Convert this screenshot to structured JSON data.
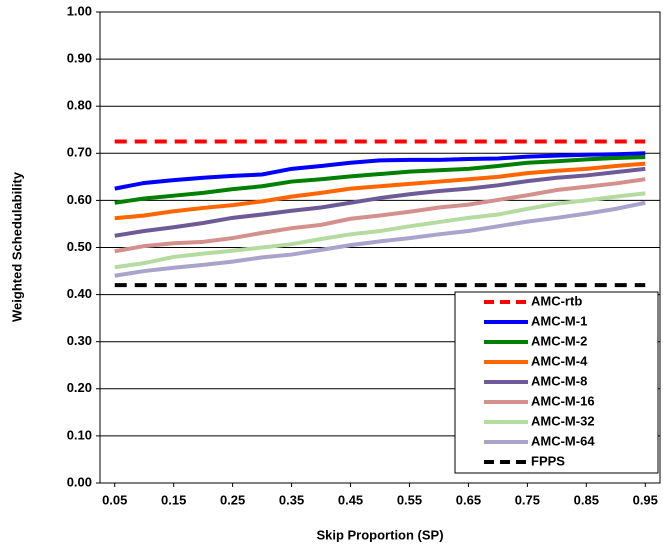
{
  "chart_data": {
    "type": "line",
    "x_label": "Skip Proportion (SP)",
    "y_label": "Weighted Schedulability",
    "x": [
      0.05,
      0.1,
      0.15,
      0.2,
      0.25,
      0.3,
      0.35,
      0.4,
      0.45,
      0.5,
      0.55,
      0.6,
      0.65,
      0.7,
      0.75,
      0.8,
      0.85,
      0.9,
      0.95
    ],
    "xlim": [
      0.025,
      0.975
    ],
    "xticks": [
      0.05,
      0.15,
      0.25,
      0.35,
      0.45,
      0.55,
      0.65,
      0.75,
      0.85,
      0.95
    ],
    "ylim": [
      0,
      1
    ],
    "yticks": [
      {
        "value": 0,
        "label": "0.00"
      },
      {
        "value": 0.1,
        "label": "0.10"
      },
      {
        "value": 0.2,
        "label": "0.20"
      },
      {
        "value": 0.3,
        "label": "0.30"
      },
      {
        "value": 0.4,
        "label": "0.40"
      },
      {
        "value": 0.5,
        "label": "0.50"
      },
      {
        "value": 0.6,
        "label": "0.60"
      },
      {
        "value": 0.7,
        "label": "0.70"
      },
      {
        "value": 0.8,
        "label": "0.80"
      },
      {
        "value": 0.9,
        "label": "0.90"
      },
      {
        "value": 1,
        "label": "1.00"
      }
    ],
    "grid": true,
    "legend_position": "lower right",
    "series": [
      {
        "name": "AMC-rtb",
        "color": "#ff0000",
        "dashed": true,
        "values": [
          0.725,
          0.725,
          0.725,
          0.725,
          0.725,
          0.725,
          0.725,
          0.725,
          0.725,
          0.725,
          0.725,
          0.725,
          0.725,
          0.725,
          0.725,
          0.725,
          0.725,
          0.725,
          0.725
        ]
      },
      {
        "name": "AMC-M-1",
        "color": "#0000ff",
        "values": [
          0.625,
          0.637,
          0.643,
          0.648,
          0.652,
          0.655,
          0.667,
          0.673,
          0.68,
          0.685,
          0.686,
          0.686,
          0.688,
          0.689,
          0.693,
          0.695,
          0.697,
          0.698,
          0.7
        ]
      },
      {
        "name": "AMC-M-2",
        "color": "#008000",
        "values": [
          0.595,
          0.604,
          0.61,
          0.616,
          0.624,
          0.63,
          0.64,
          0.645,
          0.651,
          0.656,
          0.661,
          0.664,
          0.667,
          0.673,
          0.68,
          0.683,
          0.687,
          0.69,
          0.692
        ]
      },
      {
        "name": "AMC-M-4",
        "color": "#ff6600",
        "values": [
          0.562,
          0.568,
          0.577,
          0.584,
          0.59,
          0.598,
          0.608,
          0.616,
          0.625,
          0.63,
          0.635,
          0.64,
          0.645,
          0.65,
          0.658,
          0.663,
          0.667,
          0.673,
          0.678
        ]
      },
      {
        "name": "AMC-M-8",
        "color": "#6e5a96",
        "values": [
          0.525,
          0.535,
          0.543,
          0.552,
          0.563,
          0.57,
          0.578,
          0.585,
          0.595,
          0.605,
          0.613,
          0.62,
          0.625,
          0.632,
          0.641,
          0.648,
          0.653,
          0.66,
          0.667
        ]
      },
      {
        "name": "AMC-M-16",
        "color": "#d4908c",
        "values": [
          0.492,
          0.503,
          0.509,
          0.512,
          0.52,
          0.531,
          0.541,
          0.548,
          0.561,
          0.568,
          0.576,
          0.585,
          0.591,
          0.601,
          0.611,
          0.622,
          0.629,
          0.636,
          0.645
        ]
      },
      {
        "name": "AMC-M-32",
        "color": "#b4dca0",
        "values": [
          0.458,
          0.467,
          0.48,
          0.487,
          0.493,
          0.5,
          0.507,
          0.518,
          0.528,
          0.535,
          0.545,
          0.554,
          0.563,
          0.57,
          0.582,
          0.593,
          0.6,
          0.608,
          0.615
        ]
      },
      {
        "name": "AMC-M-64",
        "color": "#aaa3cc",
        "values": [
          0.44,
          0.45,
          0.457,
          0.463,
          0.47,
          0.479,
          0.485,
          0.495,
          0.505,
          0.513,
          0.52,
          0.528,
          0.535,
          0.545,
          0.555,
          0.563,
          0.572,
          0.582,
          0.595
        ]
      },
      {
        "name": "FPPS",
        "color": "#000000",
        "dashed": true,
        "values": [
          0.42,
          0.42,
          0.42,
          0.42,
          0.42,
          0.42,
          0.42,
          0.42,
          0.42,
          0.42,
          0.42,
          0.42,
          0.42,
          0.42,
          0.42,
          0.42,
          0.42,
          0.42,
          0.42
        ]
      }
    ]
  }
}
